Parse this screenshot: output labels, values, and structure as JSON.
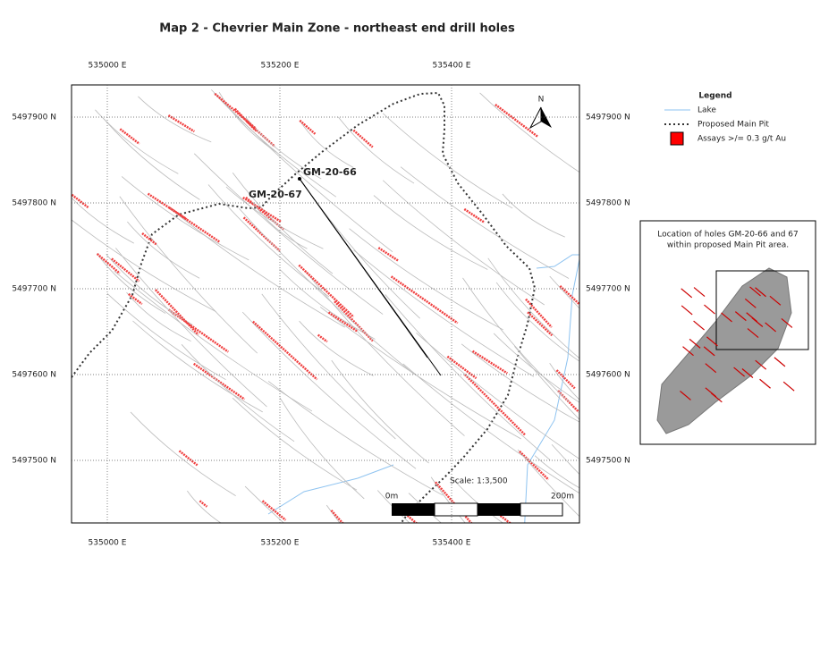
{
  "title": "Map 2 - Chevrier Main Zone - northeast end drill holes",
  "map": {
    "x_labels": [
      "535000 E",
      "535200 E",
      "535400 E"
    ],
    "y_labels": [
      "5497900 N",
      "5497800 N",
      "5497700 N",
      "5497600 N",
      "5497500 N"
    ],
    "north": "N",
    "holes": [
      "GM-20-66",
      "GM-20-67"
    ],
    "scale": {
      "text": "Scale: 1:3,500",
      "start": "0m",
      "end": "200m"
    }
  },
  "legend": {
    "title": "Legend",
    "items": [
      "Lake",
      "Proposed Main Pit",
      "Assays >/= 0.3 g/t Au"
    ]
  },
  "inset": {
    "caption": [
      "Location of holes GM-20-66 and 67",
      "within proposed Main Pit area."
    ]
  }
}
